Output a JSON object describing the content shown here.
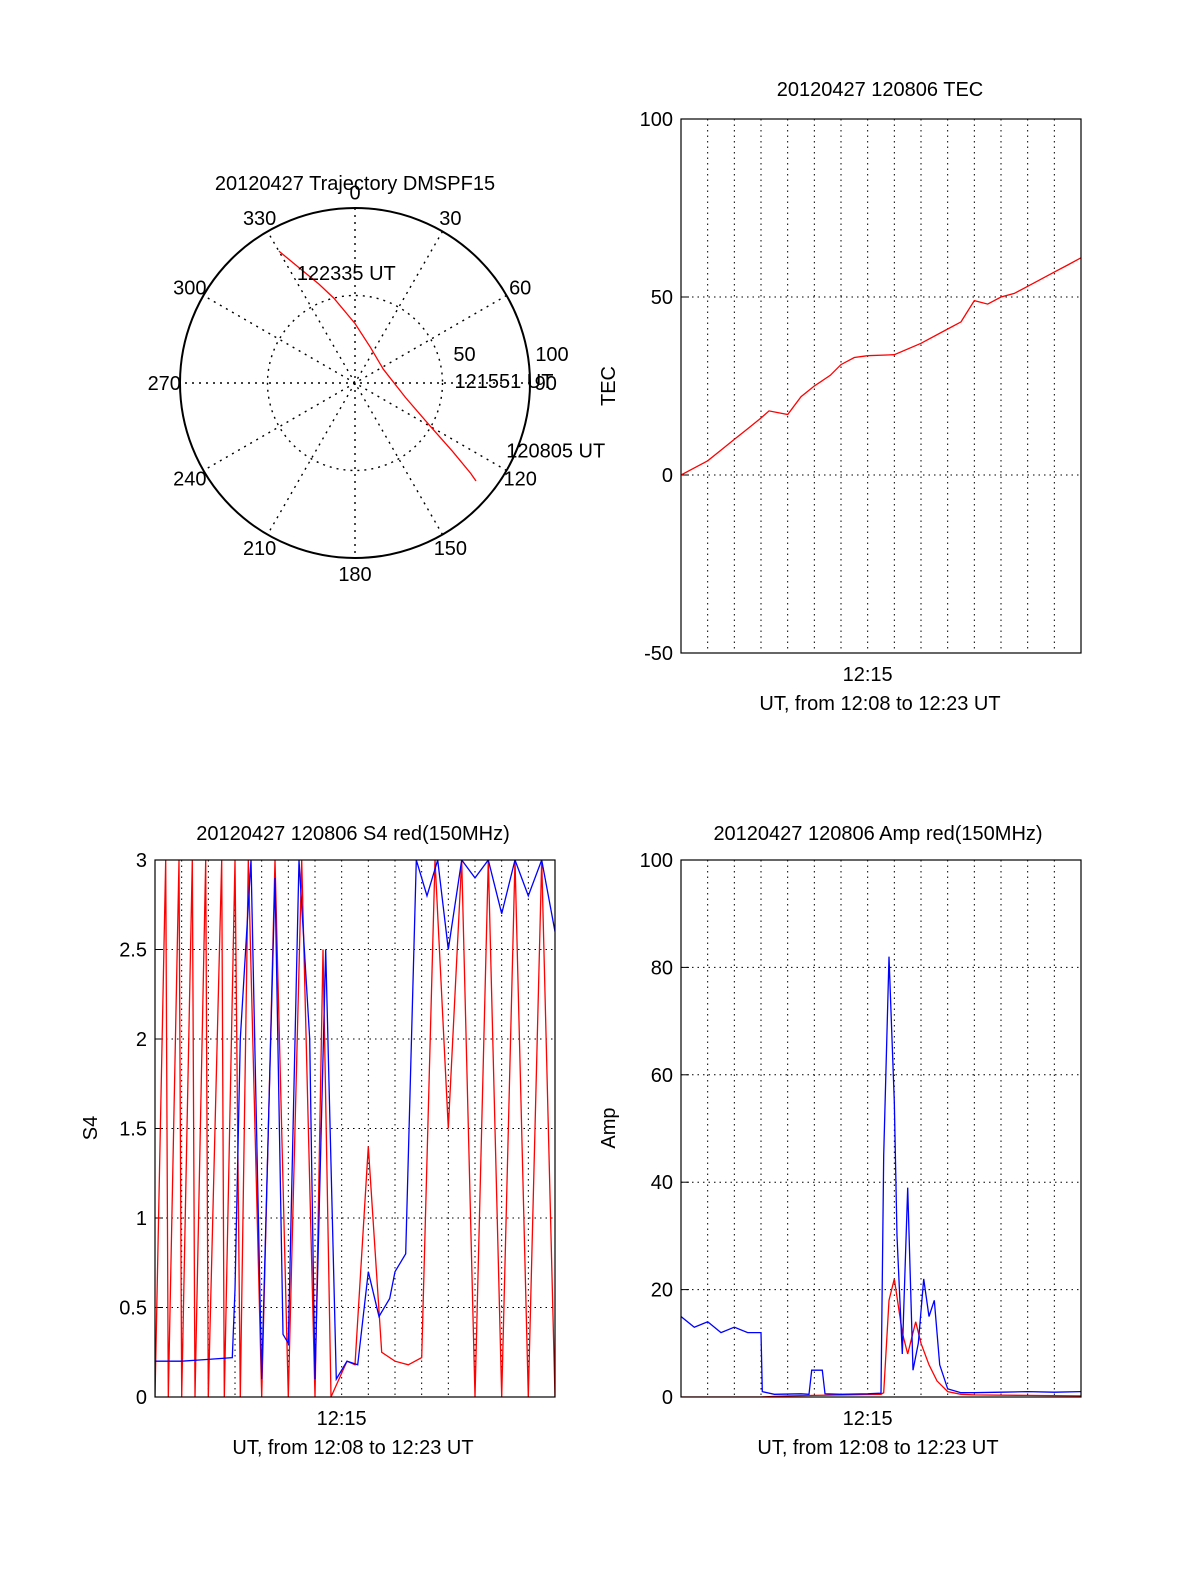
{
  "colors": {
    "red": "#ff0000",
    "blue": "#0000ff",
    "axis": "#000000",
    "grid": "#000000"
  },
  "chart_data": [
    {
      "type": "polar",
      "id": "trajectory",
      "title": "20120427 Trajectory DMSPF15",
      "angle_labels": [
        {
          "angle": 0,
          "text": "0"
        },
        {
          "angle": 30,
          "text": "30"
        },
        {
          "angle": 60,
          "text": "60"
        },
        {
          "angle": 90,
          "text": "90"
        },
        {
          "angle": 120,
          "text": "120"
        },
        {
          "angle": 150,
          "text": "150"
        },
        {
          "angle": 180,
          "text": "180"
        },
        {
          "angle": 210,
          "text": "210"
        },
        {
          "angle": 240,
          "text": "240"
        },
        {
          "angle": 270,
          "text": "270"
        },
        {
          "angle": 300,
          "text": "300"
        },
        {
          "angle": 330,
          "text": "330"
        }
      ],
      "radial_labels": [
        {
          "r": 50,
          "text": "50"
        },
        {
          "r": 100,
          "text": "100"
        }
      ],
      "r_max": 100,
      "grid": true,
      "series": [
        {
          "color": "red",
          "points": [
            {
              "az": 330,
              "r": 87
            },
            {
              "az": 340,
              "r": 60
            },
            {
              "az": 346,
              "r": 50
            },
            {
              "az": 360,
              "r": 34
            },
            {
              "az": 24,
              "r": 22
            },
            {
              "az": 64,
              "r": 18
            },
            {
              "az": 106,
              "r": 30
            },
            {
              "az": 120,
              "r": 50
            },
            {
              "az": 125,
              "r": 68
            },
            {
              "az": 128,
              "r": 84
            },
            {
              "az": 129,
              "r": 89
            }
          ]
        }
      ],
      "annotations": [
        {
          "text": "122335 UT",
          "az": 329,
          "r": 74
        },
        {
          "text": "121551 UT",
          "az": 88,
          "r": 52
        },
        {
          "text": "120805 UT",
          "az": 115,
          "r": 90
        }
      ]
    },
    {
      "type": "line",
      "id": "tec",
      "title": "20120427 120806 TEC",
      "xlabel": "UT, from 12:08 to 12:23 UT",
      "ylabel": "TEC",
      "xlim": [
        0,
        15
      ],
      "ylim": [
        -50,
        100
      ],
      "yticks": [
        {
          "v": -50,
          "t": "-50"
        },
        {
          "v": 0,
          "t": "0"
        },
        {
          "v": 50,
          "t": "50"
        },
        {
          "v": 100,
          "t": "100"
        }
      ],
      "xticks": [
        {
          "v": 7,
          "t": "12:15"
        }
      ],
      "grid": true,
      "series": [
        {
          "color": "red",
          "x": [
            0,
            0.5,
            1,
            1.5,
            2,
            2.5,
            3,
            3.3,
            4,
            4.5,
            5,
            5.2,
            5.6,
            6,
            6.5,
            7,
            8,
            9,
            10,
            10.5,
            11,
            11.5,
            12,
            12.5,
            13,
            13.5,
            14,
            14.5,
            15
          ],
          "y": [
            0,
            2,
            4,
            7,
            10,
            13,
            16,
            18,
            17,
            22,
            25,
            26,
            28,
            31,
            33,
            33.5,
            33.8,
            37,
            41,
            43,
            49,
            48,
            50,
            51,
            53,
            55,
            57,
            59,
            61
          ]
        }
      ]
    },
    {
      "type": "line",
      "id": "s4",
      "title": "20120427 120806 S4 red(150MHz)",
      "xlabel": "UT, from 12:08 to 12:23 UT",
      "ylabel": "S4",
      "xlim": [
        0,
        15
      ],
      "ylim": [
        0,
        3
      ],
      "yticks": [
        {
          "v": 0,
          "t": "0"
        },
        {
          "v": 0.5,
          "t": "0.5"
        },
        {
          "v": 1,
          "t": "1"
        },
        {
          "v": 1.5,
          "t": "1.5"
        },
        {
          "v": 2,
          "t": "2"
        },
        {
          "v": 2.5,
          "t": "2.5"
        },
        {
          "v": 3,
          "t": "3"
        }
      ],
      "xticks": [
        {
          "v": 7,
          "t": "12:15"
        }
      ],
      "grid": true,
      "series": [
        {
          "color": "red",
          "x": [
            0,
            0.4,
            0.5,
            0.9,
            1.0,
            1.4,
            1.5,
            1.9,
            2.0,
            2.5,
            2.6,
            3.0,
            3.2,
            3.5,
            4.0,
            4.5,
            5.0,
            5.5,
            6.0,
            6.3,
            6.6,
            7.2,
            7.5,
            8.0,
            8.5,
            9.0,
            9.5,
            10.0,
            10.5,
            11.0,
            11.5,
            12.0,
            12.5,
            13.0,
            13.5,
            14.0,
            14.5,
            15.0
          ],
          "y": [
            0,
            3,
            0,
            3,
            0,
            3,
            0,
            3,
            0,
            3,
            0,
            3,
            0,
            3,
            0,
            3,
            0,
            3,
            0,
            2.5,
            0,
            0.2,
            0.18,
            1.4,
            0.25,
            0.2,
            0.18,
            0.22,
            3,
            1.5,
            3,
            0,
            3,
            0,
            3,
            0,
            3,
            0
          ]
        },
        {
          "color": "blue",
          "x": [
            0,
            1,
            2,
            2.9,
            3.0,
            3.2,
            3.6,
            4.0,
            4.5,
            4.8,
            5.0,
            5.4,
            5.8,
            6.0,
            6.4,
            6.8,
            7.2,
            7.6,
            8.0,
            8.4,
            8.8,
            9.0,
            9.4,
            9.8,
            10.2,
            10.6,
            11.0,
            11.5,
            12.0,
            12.5,
            13.0,
            13.5,
            14.0,
            14.5,
            15.0
          ],
          "y": [
            0.2,
            0.2,
            0.21,
            0.22,
            0.6,
            2.0,
            3.0,
            0.1,
            2.9,
            0.35,
            0.3,
            3.0,
            2.0,
            0.1,
            2.5,
            0.1,
            0.2,
            0.18,
            0.7,
            0.45,
            0.55,
            0.7,
            0.8,
            3.0,
            2.8,
            3.0,
            2.5,
            3.0,
            2.9,
            3.0,
            2.7,
            3.0,
            2.8,
            3.0,
            2.6
          ]
        }
      ]
    },
    {
      "type": "line",
      "id": "amp",
      "title": "20120427 120806 Amp red(150MHz)",
      "xlabel": "UT, from 12:08 to 12:23 UT",
      "ylabel": "Amp",
      "xlim": [
        0,
        15
      ],
      "ylim": [
        0,
        100
      ],
      "yticks": [
        {
          "v": 0,
          "t": "0"
        },
        {
          "v": 20,
          "t": "20"
        },
        {
          "v": 40,
          "t": "40"
        },
        {
          "v": 60,
          "t": "60"
        },
        {
          "v": 80,
          "t": "80"
        },
        {
          "v": 100,
          "t": "100"
        }
      ],
      "xticks": [
        {
          "v": 7,
          "t": "12:15"
        }
      ],
      "grid": true,
      "series": [
        {
          "color": "red",
          "x": [
            0,
            3,
            4,
            5,
            7.5,
            7.6,
            7.8,
            8.0,
            8.3,
            8.5,
            8.8,
            9.0,
            9.3,
            9.6,
            10.0,
            10.5,
            11,
            13,
            15
          ],
          "y": [
            0,
            0,
            0.2,
            0.3,
            0.5,
            0.8,
            18,
            22,
            12,
            8,
            14,
            10,
            6,
            3,
            1,
            0.5,
            0.4,
            0.3,
            0.2
          ]
        },
        {
          "color": "blue",
          "x": [
            0,
            0.5,
            1,
            1.5,
            2,
            2.5,
            3,
            3.05,
            3.5,
            4.5,
            4.8,
            4.9,
            5.3,
            5.4,
            6,
            7,
            7.5,
            7.6,
            7.8,
            8.0,
            8.1,
            8.3,
            8.5,
            8.7,
            8.9,
            9.1,
            9.3,
            9.5,
            9.7,
            10.0,
            10.5,
            11,
            12,
            13,
            14,
            15
          ],
          "y": [
            15,
            13,
            14,
            12,
            13,
            12,
            12,
            1,
            0.5,
            0.6,
            0.5,
            5,
            5,
            0.6,
            0.5,
            0.6,
            0.7,
            45,
            82,
            55,
            30,
            8,
            39,
            5,
            10,
            22,
            15,
            18,
            6,
            1.5,
            0.8,
            0.8,
            0.9,
            1.0,
            0.9,
            1.0
          ]
        }
      ]
    }
  ]
}
